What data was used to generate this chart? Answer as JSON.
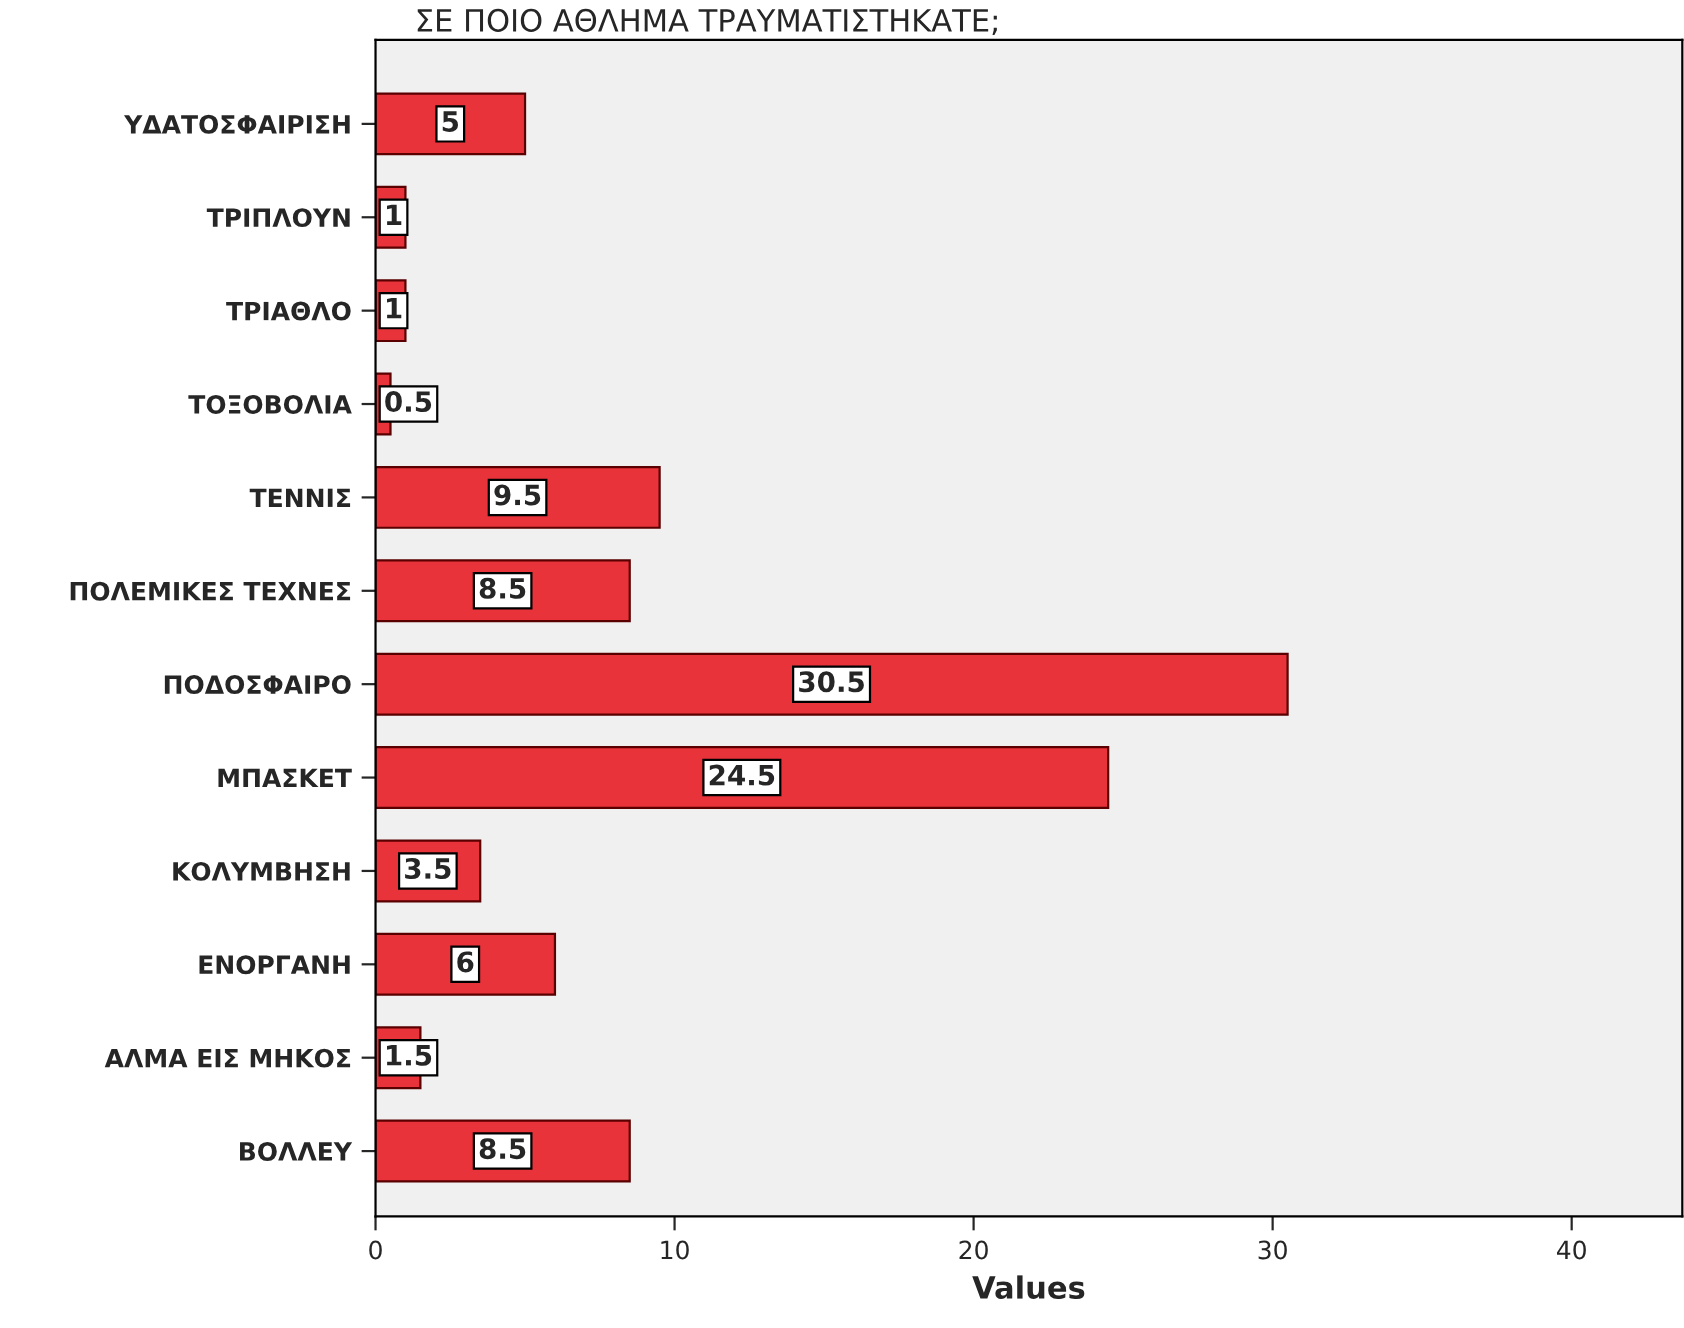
{
  "chart_data": {
    "type": "bar",
    "orientation": "horizontal",
    "title": "ΣΕ ΠΟΙΟ ΑΘΛΗΜΑ ΤΡΑΥΜΑΤΙΣΤΗΚΑΤΕ;",
    "xlabel": "Values",
    "categories": [
      "ΥΔΑΤΟΣΦΑΙΡΙΣΗ",
      "ΤΡΙΠΛΟΥΝ",
      "ΤΡΙΑΘΛΟ",
      "ΤΟΞΟΒΟΛΙΑ",
      "ΤΕΝΝΙΣ",
      "ΠΟΛΕΜΙΚΕΣ ΤΕΧΝΕΣ",
      "ΠΟΔΟΣΦΑΙΡΟ",
      "ΜΠΑΣΚΕΤ",
      "ΚΟΛΥΜΒΗΣΗ",
      "ΕΝΟΡΓΑΝΗ",
      "ΑΛΜΑ ΕΙΣ ΜΗΚΟΣ",
      "ΒΟΛΛΕΥ"
    ],
    "values": [
      5,
      1,
      1,
      0.5,
      9.5,
      8.5,
      30.5,
      24.5,
      3.5,
      6,
      1.5,
      8.5
    ],
    "color": "#e8333a",
    "xlim": [
      0,
      43.7
    ],
    "xticks": [
      0,
      10,
      20,
      30,
      40
    ],
    "grid": false,
    "data_labels": true
  }
}
